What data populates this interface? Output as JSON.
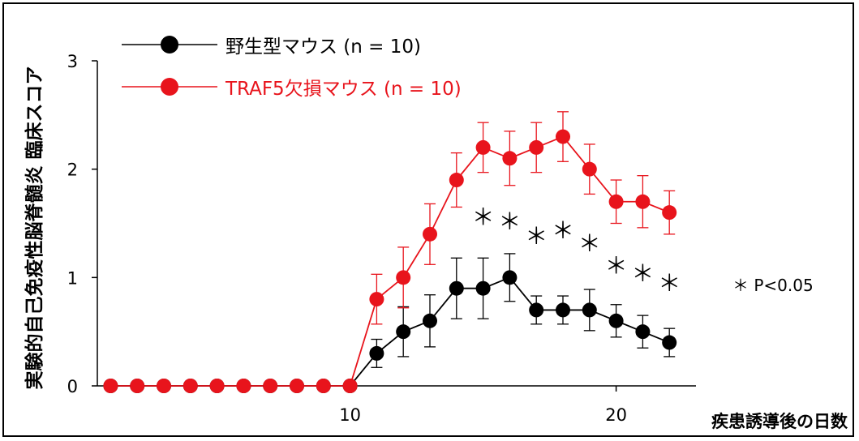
{
  "chart_data": {
    "type": "line",
    "xlabel": "疾患誘導後の日数",
    "ylabel": "実験的自己免疫性脳脊髄炎 臨床スコア",
    "ylim": [
      0,
      3
    ],
    "xlim": [
      0.5,
      23
    ],
    "x_ticks": [
      10,
      20
    ],
    "y_ticks": [
      0,
      1,
      2,
      3
    ],
    "grid": false,
    "legend_position": "top-left",
    "series": [
      {
        "name": "野生型マウス (n = 10)",
        "color": "#000000",
        "x": [
          1,
          2,
          3,
          4,
          5,
          6,
          7,
          8,
          9,
          10,
          11,
          12,
          13,
          14,
          15,
          16,
          17,
          18,
          19,
          20,
          21,
          22
        ],
        "y": [
          0,
          0,
          0,
          0,
          0,
          0,
          0,
          0,
          0,
          0,
          0.3,
          0.5,
          0.6,
          0.9,
          0.9,
          1.0,
          0.7,
          0.7,
          0.7,
          0.6,
          0.5,
          0.4
        ],
        "err": [
          0,
          0,
          0,
          0,
          0,
          0,
          0,
          0,
          0,
          0,
          0.13,
          0.23,
          0.24,
          0.28,
          0.28,
          0.22,
          0.13,
          0.13,
          0.19,
          0.15,
          0.15,
          0.13
        ]
      },
      {
        "name": "TRAF5欠損マウス (n = 10)",
        "color": "#e8141c",
        "x": [
          1,
          2,
          3,
          4,
          5,
          6,
          7,
          8,
          9,
          10,
          11,
          12,
          13,
          14,
          15,
          16,
          17,
          18,
          19,
          20,
          21,
          22
        ],
        "y": [
          0,
          0,
          0,
          0,
          0,
          0,
          0,
          0,
          0,
          0,
          0.8,
          1.0,
          1.4,
          1.9,
          2.2,
          2.1,
          2.2,
          2.3,
          2.0,
          1.7,
          1.7,
          1.6
        ],
        "err": [
          0,
          0,
          0,
          0,
          0,
          0,
          0,
          0,
          0,
          0,
          0.23,
          0.28,
          0.28,
          0.25,
          0.23,
          0.25,
          0.23,
          0.23,
          0.23,
          0.2,
          0.24,
          0.2
        ]
      }
    ],
    "significance_marks": {
      "symbol": "＊",
      "x": [
        15,
        16,
        17,
        18,
        19,
        20,
        21,
        22
      ],
      "note": "＊ P<0.05"
    }
  }
}
